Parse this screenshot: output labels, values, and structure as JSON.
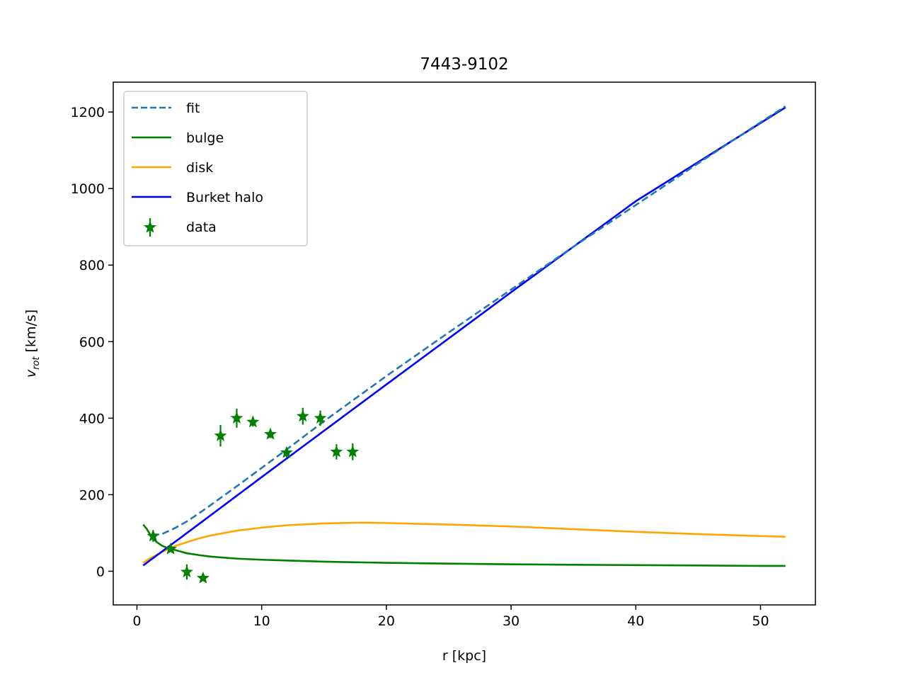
{
  "chart_data": {
    "type": "line",
    "title": "7443-9102",
    "xlabel": "r [kpc]",
    "ylabel_main": "v",
    "ylabel_sub": "rot",
    "ylabel_unit": " [km/s]",
    "xlim": [
      -1.9,
      54.4
    ],
    "ylim": [
      -88,
      1278
    ],
    "xticks": [
      0,
      10,
      20,
      30,
      40,
      50
    ],
    "yticks": [
      0,
      200,
      400,
      600,
      800,
      1000,
      1200
    ],
    "legend_position": "top-left",
    "grid": false,
    "series": [
      {
        "name": "fit",
        "style": "dashed",
        "color": "#1f77b4",
        "x": [
          1.2,
          2,
          3,
          4,
          5,
          6,
          8,
          10,
          12,
          15,
          20,
          25,
          30,
          35,
          40,
          45,
          50,
          52
        ],
        "y": [
          95,
          97,
          112,
          130,
          152,
          175,
          222,
          270,
          318,
          392,
          510,
          624,
          736,
          848,
          957,
          1066,
          1173,
          1215
        ]
      },
      {
        "name": "bulge",
        "style": "solid",
        "color": "#008000",
        "x": [
          0.5,
          0.8,
          1.2,
          1.6,
          2,
          2.5,
          3,
          4,
          5,
          6,
          8,
          10,
          12,
          15,
          20,
          25,
          30,
          35,
          40,
          45,
          50,
          52
        ],
        "y": [
          122,
          110,
          88,
          76,
          67,
          60,
          56,
          47,
          42,
          38,
          33,
          30,
          28,
          25,
          22,
          20,
          18,
          17,
          16,
          15,
          14,
          14
        ]
      },
      {
        "name": "disk",
        "style": "solid",
        "color": "#ffa500",
        "x": [
          0.5,
          1,
          2,
          3,
          4,
          5,
          6,
          8,
          10,
          12,
          15,
          18,
          20,
          25,
          30,
          35,
          40,
          45,
          50,
          52
        ],
        "y": [
          22,
          33,
          50,
          65,
          76,
          86,
          94,
          106,
          114,
          120,
          125,
          127,
          126,
          122,
          117,
          110,
          103,
          97,
          92,
          90
        ]
      },
      {
        "name": "Burket halo",
        "style": "solid",
        "color": "#0000ff",
        "x": [
          0.5,
          5,
          10,
          20,
          30,
          40,
          52
        ],
        "y": [
          15,
          124,
          246,
          488,
          729,
          967,
          1212
        ]
      }
    ],
    "data_series": {
      "name": "data",
      "color": "#008000",
      "marker": "star",
      "x": [
        1.3,
        2.7,
        4.0,
        5.3,
        6.7,
        8.0,
        9.3,
        10.7,
        12.0,
        13.3,
        14.7,
        16.0,
        17.3
      ],
      "y": [
        92,
        58,
        -2,
        -18,
        354,
        400,
        390,
        358,
        310,
        405,
        400,
        312,
        312
      ],
      "yerr": [
        15,
        8,
        20,
        8,
        28,
        25,
        12,
        10,
        12,
        22,
        20,
        20,
        22
      ]
    }
  }
}
